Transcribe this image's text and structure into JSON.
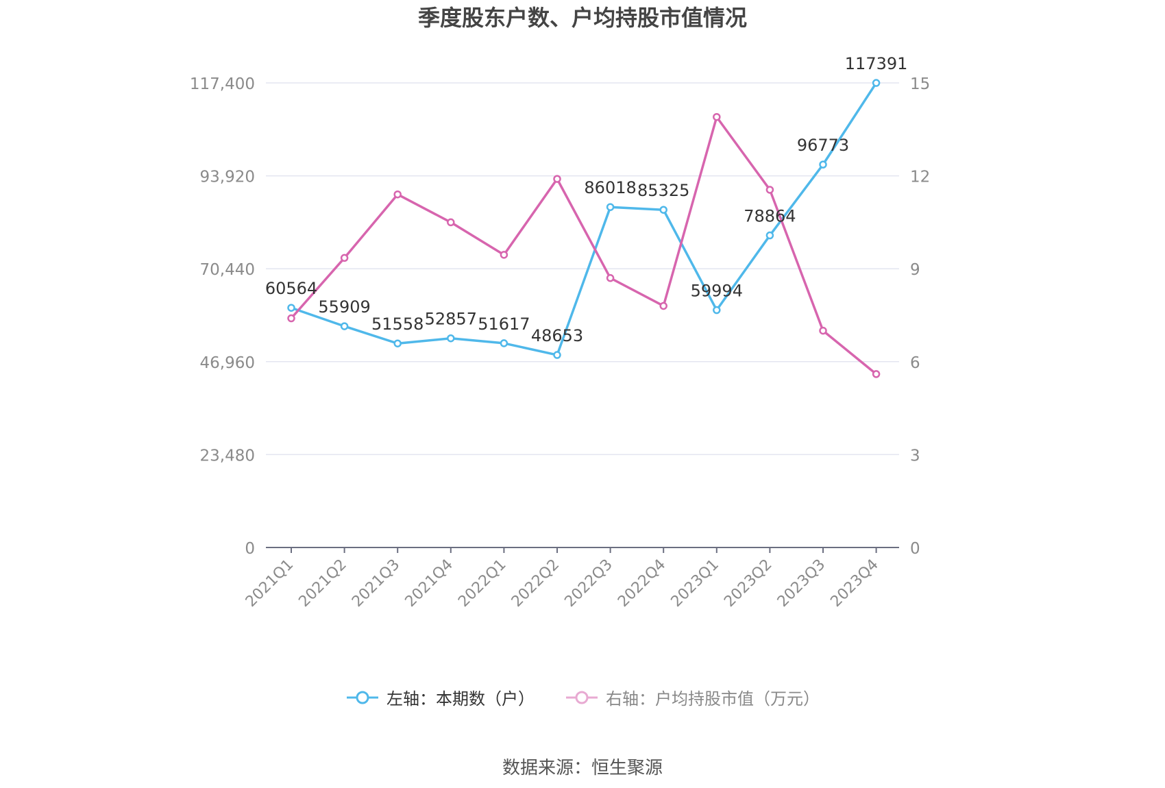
{
  "title": "季度股东户数、户均持股市值情况",
  "source_note": "数据来源：恒生聚源",
  "colors": {
    "left_series": "#4fb8ea",
    "right_series": "#d765ae",
    "grid": "#e3e5f0",
    "axis_text": "#8a8a8a"
  },
  "legend": {
    "left_label": "左轴：本期数（户）",
    "right_label": "右轴：户均持股市值（万元）"
  },
  "chart_data": {
    "type": "line",
    "title": "季度股东户数、户均持股市值情况",
    "categories": [
      "2021Q1",
      "2021Q2",
      "2021Q3",
      "2021Q4",
      "2022Q1",
      "2022Q2",
      "2022Q3",
      "2022Q4",
      "2023Q1",
      "2023Q2",
      "2023Q3",
      "2023Q4"
    ],
    "left_axis": {
      "min": 0,
      "max": 117400,
      "ticks": [
        0,
        23480,
        46960,
        70440,
        93920,
        117400
      ],
      "tick_labels": [
        "0",
        "23,480",
        "46,960",
        "70,440",
        "93,920",
        "117,400"
      ]
    },
    "right_axis": {
      "min": 0,
      "max": 15,
      "ticks": [
        0,
        3,
        6,
        9,
        12,
        15
      ],
      "tick_labels": [
        "0",
        "3",
        "6",
        "9",
        "12",
        "15"
      ]
    },
    "grid": true,
    "legend_position": "bottom",
    "series": [
      {
        "name": "左轴：本期数（户）",
        "axis": "left",
        "values": [
          60564,
          55909,
          51558,
          52857,
          51617,
          48653,
          86018,
          85325,
          59994,
          78864,
          96773,
          117391
        ],
        "labels": [
          "60564",
          "55909",
          "51558",
          "52857",
          "51617",
          "48653",
          "86018",
          "85325",
          "59994",
          "78864",
          "96773",
          "117391"
        ]
      },
      {
        "name": "右轴：户均持股市值（万元）",
        "axis": "right",
        "values": [
          7.4,
          9.35,
          11.4,
          10.5,
          9.45,
          11.9,
          8.7,
          7.8,
          13.9,
          11.55,
          7.0,
          5.6
        ]
      }
    ]
  }
}
